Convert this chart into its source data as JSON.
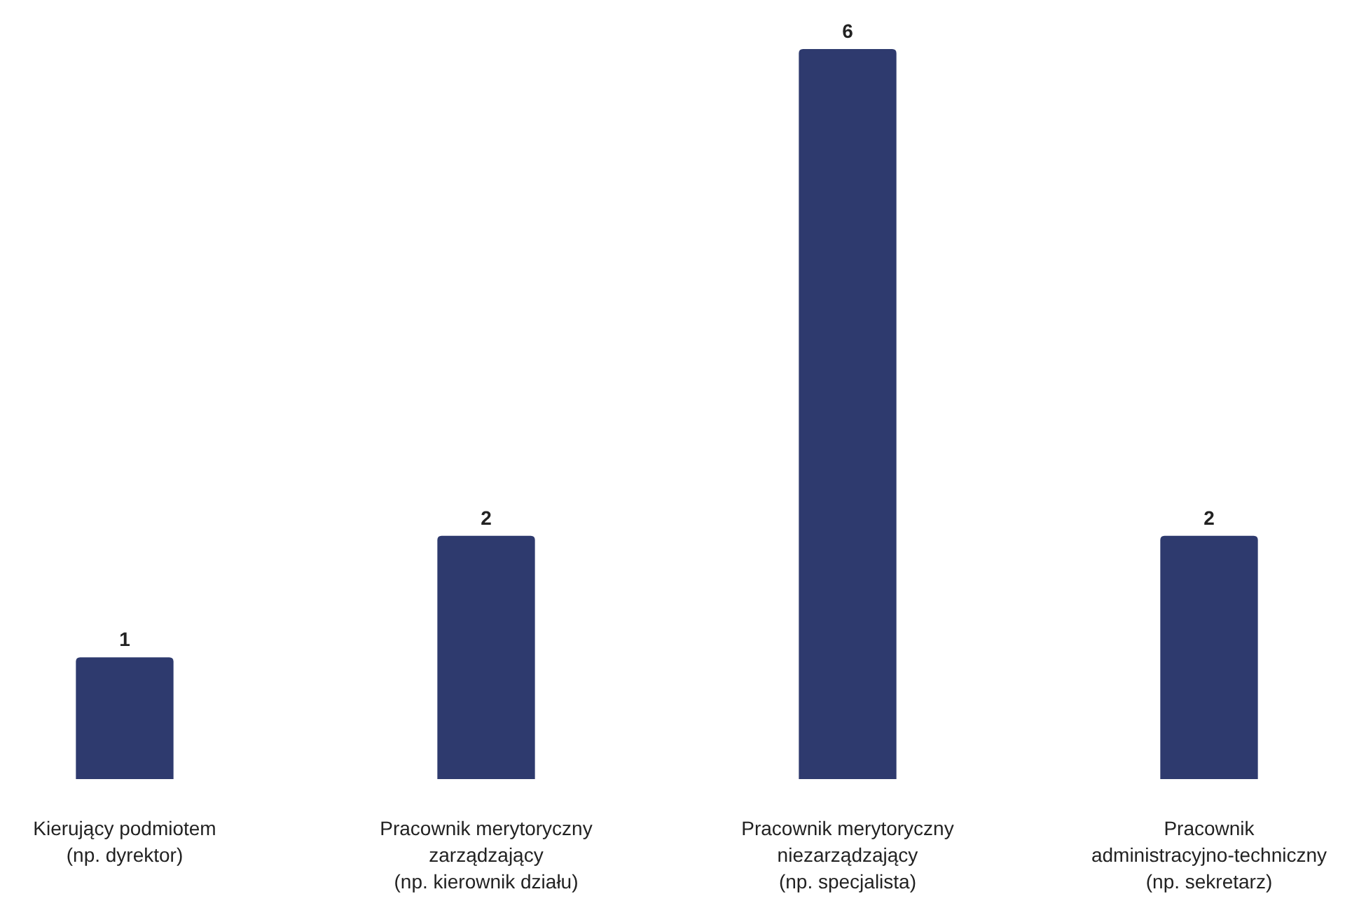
{
  "chart_data": {
    "type": "bar",
    "categories": [
      "Kierujący podmiotem\n(np. dyrektor)",
      "Pracownik merytoryczny\nzarządzający\n(np. kierownik działu)",
      "Pracownik merytoryczny\nniezarządzający\n(np. specjalista)",
      "Pracownik\nadministracyjno-techniczny\n(np. sekretarz)"
    ],
    "values": [
      1,
      2,
      6,
      2
    ],
    "color": "#2e3a6e",
    "data_labels": true,
    "ylim": [
      0,
      6
    ]
  }
}
